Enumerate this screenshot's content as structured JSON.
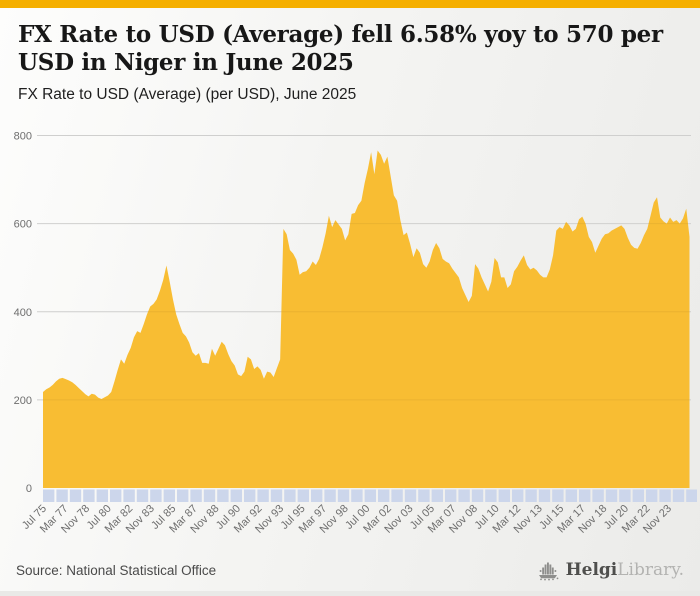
{
  "accent_color": "#F5AF00",
  "header": {
    "title": "FX Rate to USD (Average) fell 6.58% yoy to 570 per USD in Niger in June 2025",
    "subtitle": "FX Rate to USD (Average) (per USD), June 2025"
  },
  "chart_data": {
    "type": "area",
    "title": "FX Rate to USD (Average) (per USD), June 2025",
    "series_name": "FX Rate to USD (Average)",
    "unit": "per USD",
    "country": "Niger",
    "frequency": "quarterly",
    "period_start": "Jul 1975",
    "period_end": "Jun 2025",
    "ylim": [
      0,
      800
    ],
    "yticks": [
      0,
      200,
      400,
      600,
      800
    ],
    "grid": "horizontal",
    "legend": "none",
    "xtick_interval_months": 20,
    "x_total_months": 600,
    "xticklabels": [
      "Jul 75",
      "Mar 77",
      "Nov 78",
      "Jul 80",
      "Mar 82",
      "Nov 83",
      "Jul 85",
      "Mar 87",
      "Nov 88",
      "Jul 90",
      "Mar 92",
      "Nov 93",
      "Jul 95",
      "Mar 97",
      "Nov 98",
      "Jul 00",
      "Mar 02",
      "Nov 03",
      "Jul 05",
      "Mar 07",
      "Nov 08",
      "Jul 10",
      "Mar 12",
      "Nov 13",
      "Jul 15",
      "Mar 17",
      "Nov 18",
      "Jul 20",
      "Mar 22",
      "Nov 23"
    ],
    "values": [
      218,
      224,
      228,
      234,
      242,
      248,
      250,
      247,
      244,
      240,
      234,
      227,
      220,
      213,
      208,
      214,
      212,
      205,
      202,
      206,
      210,
      218,
      242,
      268,
      292,
      282,
      302,
      318,
      342,
      356,
      352,
      372,
      394,
      412,
      418,
      428,
      448,
      472,
      505,
      468,
      428,
      394,
      372,
      352,
      344,
      330,
      308,
      300,
      306,
      284,
      284,
      282,
      316,
      300,
      316,
      332,
      324,
      304,
      288,
      278,
      258,
      254,
      264,
      298,
      292,
      270,
      276,
      268,
      248,
      264,
      262,
      252,
      272,
      292,
      588,
      576,
      540,
      532,
      518,
      484,
      490,
      492,
      500,
      514,
      506,
      520,
      546,
      578,
      618,
      592,
      608,
      598,
      588,
      562,
      576,
      622,
      624,
      642,
      652,
      692,
      724,
      762,
      712,
      766,
      756,
      736,
      752,
      708,
      664,
      652,
      608,
      574,
      580,
      554,
      524,
      544,
      534,
      508,
      500,
      514,
      540,
      556,
      544,
      520,
      514,
      510,
      498,
      488,
      478,
      454,
      438,
      422,
      436,
      508,
      498,
      478,
      462,
      446,
      468,
      522,
      512,
      478,
      478,
      454,
      462,
      492,
      502,
      516,
      528,
      506,
      496,
      500,
      494,
      484,
      478,
      478,
      496,
      528,
      584,
      592,
      588,
      604,
      596,
      582,
      588,
      610,
      616,
      600,
      570,
      558,
      534,
      550,
      566,
      576,
      578,
      584,
      588,
      592,
      596,
      588,
      568,
      552,
      545,
      543,
      556,
      574,
      588,
      618,
      648,
      660,
      614,
      605,
      600,
      614,
      604,
      608,
      600,
      612,
      634,
      570
    ],
    "colors": {
      "area": "#F8BD33",
      "tick_band": "#CCD6EB",
      "gridline": "#DCDCDA",
      "axis_text": "#6E6E6E"
    }
  },
  "footer": {
    "source": "Source: National Statistical Office",
    "brand_primary": "Helgi",
    "brand_secondary": "Library."
  }
}
